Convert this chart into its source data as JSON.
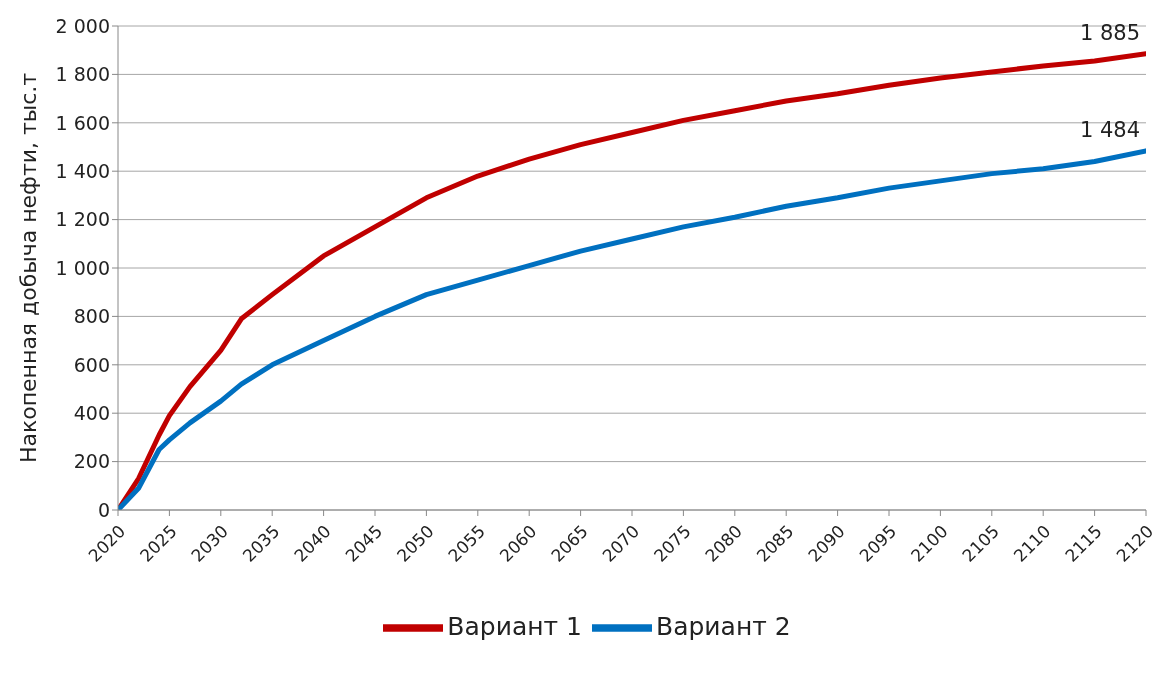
{
  "chart_data": {
    "type": "line",
    "ylabel": "Накопенная добыча нефти, тыс.т",
    "xlim": [
      2020,
      2120
    ],
    "xticks": [
      2020,
      2025,
      2030,
      2035,
      2040,
      2045,
      2050,
      2055,
      2060,
      2065,
      2070,
      2075,
      2080,
      2085,
      2090,
      2095,
      2100,
      2105,
      2110,
      2115,
      2120
    ],
    "ylim": [
      0,
      2000
    ],
    "yticks": [
      0,
      200,
      400,
      600,
      800,
      {
        "value": 1000,
        "label": "1 000"
      },
      {
        "value": 1200,
        "label": "1 200"
      },
      {
        "value": 1400,
        "label": "1 400"
      },
      {
        "value": 1600,
        "label": "1 600"
      },
      {
        "value": 1800,
        "label": "1 800"
      },
      {
        "value": 2000,
        "label": "2 000"
      }
    ],
    "grid": "y",
    "legend": "bottom",
    "marker": "none",
    "line_style": "solid",
    "x": [
      2020,
      2022,
      2024,
      2025,
      2027,
      2030,
      2032,
      2035,
      2040,
      2045,
      2050,
      2055,
      2060,
      2065,
      2070,
      2075,
      2080,
      2085,
      2090,
      2095,
      2100,
      2105,
      2110,
      2115,
      2120
    ],
    "series": [
      {
        "name": "Вариант 1",
        "color": "#c00000",
        "values": [
          0,
          130,
          310,
          390,
          510,
          660,
          790,
          890,
          1050,
          1170,
          1290,
          1380,
          1450,
          1510,
          1560,
          1610,
          1650,
          1690,
          1720,
          1755,
          1785,
          1810,
          1835,
          1855,
          1885
        ],
        "value_labels": [
          null,
          null,
          null,
          null,
          null,
          null,
          null,
          null,
          null,
          null,
          null,
          null,
          null,
          null,
          null,
          null,
          null,
          null,
          null,
          null,
          null,
          null,
          null,
          null,
          "1 885"
        ]
      },
      {
        "name": "Вариант 2",
        "color": "#0070c0",
        "values": [
          0,
          90,
          250,
          290,
          360,
          450,
          520,
          600,
          700,
          800,
          890,
          950,
          1010,
          1070,
          1120,
          1170,
          1210,
          1255,
          1290,
          1330,
          1360,
          1390,
          1410,
          1440,
          1484
        ],
        "value_labels": [
          null,
          null,
          null,
          null,
          null,
          null,
          null,
          null,
          null,
          null,
          null,
          null,
          null,
          null,
          null,
          null,
          null,
          null,
          null,
          null,
          null,
          null,
          null,
          null,
          "1 484"
        ]
      }
    ]
  }
}
